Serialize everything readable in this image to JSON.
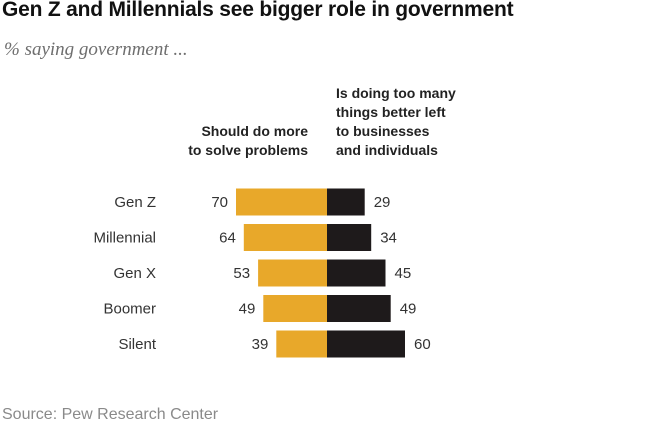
{
  "chart_data": {
    "type": "bar",
    "title": "Gen Z and Millennials see bigger role in government",
    "subtitle": "% saying government ...",
    "categories": [
      "Gen Z",
      "Millennial",
      "Gen X",
      "Boomer",
      "Silent"
    ],
    "series": [
      {
        "name_lines": [
          "Should do more",
          "to solve problems"
        ],
        "values": [
          70,
          64,
          53,
          49,
          39
        ],
        "color": "#e8a82a"
      },
      {
        "name_lines": [
          "Is doing too many",
          "things better left",
          "to businesses",
          "and individuals"
        ],
        "values": [
          29,
          34,
          45,
          49,
          60
        ],
        "color": "#1e1a1b"
      }
    ],
    "source": "Source: Pew Research Center"
  }
}
